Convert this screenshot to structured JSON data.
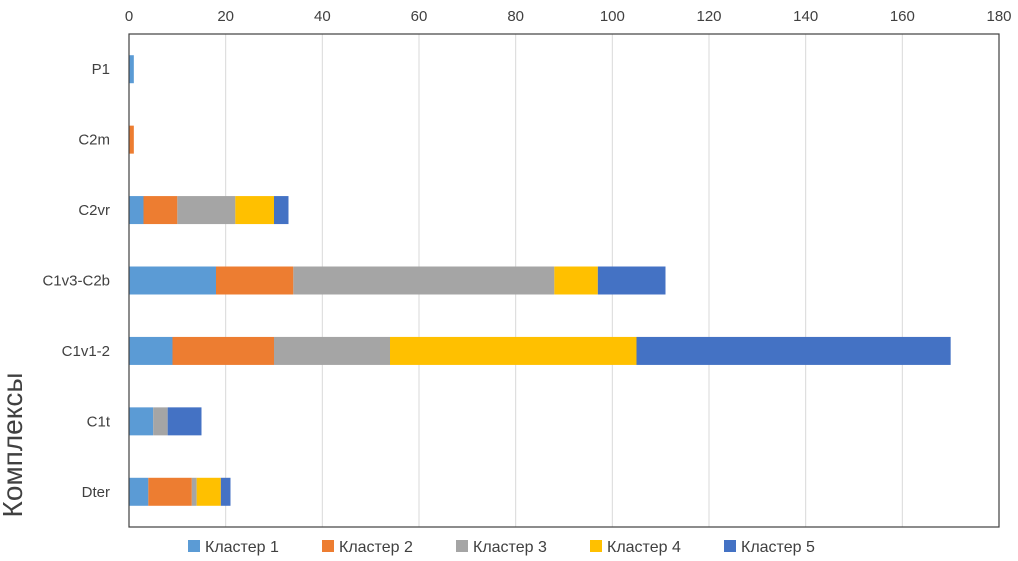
{
  "chart_data": {
    "type": "bar",
    "orientation": "horizontal",
    "stacked": true,
    "xlabel": "",
    "ylabel": "Комплексы",
    "xlim": [
      0,
      180
    ],
    "xticks": [
      "0",
      "20",
      "40",
      "60",
      "80",
      "100",
      "120",
      "140",
      "160",
      "180"
    ],
    "x_axis_position": "top",
    "categories": [
      "P1",
      "C2m",
      "C2vr",
      "C1v3-C2b",
      "C1v1-2",
      "C1t",
      "Dter"
    ],
    "series": [
      {
        "name": "Кластер 1",
        "color": "#5B9BD5",
        "values": [
          1,
          0,
          3,
          18,
          9,
          5,
          4
        ]
      },
      {
        "name": "Кластер 2",
        "color": "#ED7D31",
        "values": [
          0,
          1,
          7,
          16,
          21,
          0,
          9
        ]
      },
      {
        "name": "Кластер 3",
        "color": "#A5A5A5",
        "values": [
          0,
          0,
          12,
          54,
          24,
          3,
          1
        ]
      },
      {
        "name": "Кластер 4",
        "color": "#FFC000",
        "values": [
          0,
          0,
          8,
          9,
          51,
          0,
          5
        ]
      },
      {
        "name": "Кластер 5",
        "color": "#4472C4",
        "values": [
          0,
          0,
          3,
          14,
          65,
          7,
          2
        ]
      }
    ],
    "grid": {
      "vertical": true,
      "horizontal": false
    },
    "legend_position": "bottom"
  }
}
